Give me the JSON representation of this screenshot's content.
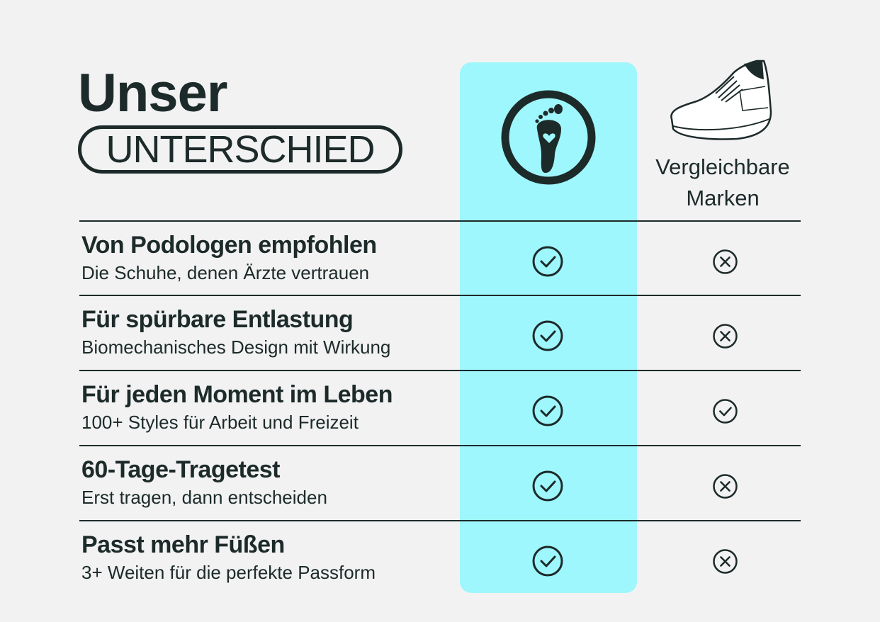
{
  "header": {
    "title": "Unser",
    "badge": "UNTERSCHIED",
    "competitor_label": "Vergleichbare Marken"
  },
  "columns": {
    "brand_icon": "foot-heart-logo-icon",
    "competitor_icon": "sneaker-icon"
  },
  "colors": {
    "highlight": "#9ef7fc",
    "text": "#1d2a2a",
    "background": "#f2f2f2"
  },
  "rows": [
    {
      "title": "Von Podologen empfohlen",
      "subtitle": "Die Schuhe, denen Ärzte vertrauen",
      "brand": "check",
      "competitor": "cross"
    },
    {
      "title": "Für spürbare Entlastung",
      "subtitle": "Biomechanisches Design mit Wirkung",
      "brand": "check",
      "competitor": "cross"
    },
    {
      "title": "Für jeden Moment im Leben",
      "subtitle": "100+ Styles für Arbeit und Freizeit",
      "brand": "check",
      "competitor": "check"
    },
    {
      "title": "60-Tage-Tragetest",
      "subtitle": "Erst tragen, dann entscheiden",
      "brand": "check",
      "competitor": "cross"
    },
    {
      "title": "Passt mehr Füßen",
      "subtitle": "3+ Weiten für die perfekte Passform",
      "brand": "check",
      "competitor": "cross"
    }
  ]
}
